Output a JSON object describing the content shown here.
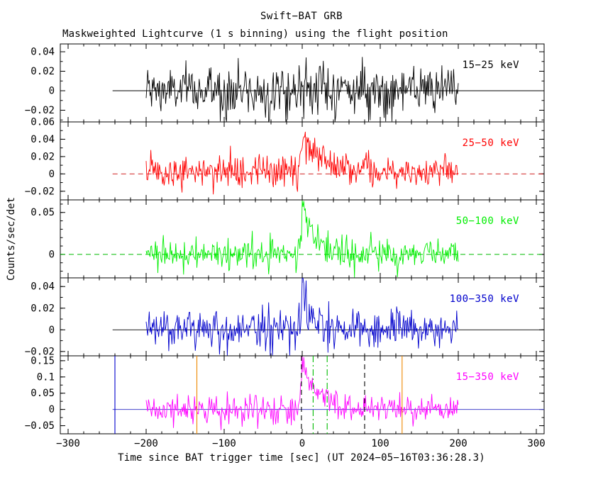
{
  "title": "Swift−BAT GRB",
  "subtitle": "Maskweighted Lightcurve (1 s binning) using the flight position",
  "xlabel": "Time since BAT trigger time [sec] (UT 2024−05−16T03:36:28.3)",
  "ylabel": "Counts/sec/det",
  "chart_data": {
    "type": "line",
    "x_range": [
      -310,
      310
    ],
    "x_ticks": [
      -300,
      -200,
      -100,
      0,
      100,
      200,
      300
    ],
    "x_minor_step": 20,
    "data_time_range": [
      -200,
      200
    ],
    "binning_sec": 1,
    "grid": false,
    "legend_position": "inside-right-per-panel",
    "panels": [
      {
        "label": "15−25 keV",
        "color": "#000000",
        "ylim": [
          -0.032,
          0.048
        ],
        "yticks": [
          0.04,
          0.02,
          0,
          -0.02
        ],
        "ytick_minor_step": 0.01,
        "noise_sigma": 0.0095,
        "noise_boost": {
          "center": -40,
          "width": 110,
          "factor": 0.55
        },
        "burst": {
          "t0": 0,
          "amplitude": 0.006,
          "rise": 2,
          "decay": 30
        },
        "baseline": {
          "style": "solid",
          "color": "#000000",
          "from": -243,
          "to": 310
        }
      },
      {
        "label": "25−50 keV",
        "color": "#ff0000",
        "ylim": [
          -0.03,
          0.06
        ],
        "yticks": [
          0.06,
          0.04,
          0.02,
          0,
          -0.02
        ],
        "ytick_minor_step": 0.01,
        "noise_sigma": 0.008,
        "offset": 0.003,
        "noise_boost": {
          "center": -60,
          "width": 120,
          "factor": 0.35
        },
        "burst": {
          "t0": 0,
          "amplitude": 0.042,
          "rise": 2,
          "decay": 25
        },
        "baseline": {
          "style": "dashed",
          "color": "#cc0000",
          "from": -243,
          "to": 310
        }
      },
      {
        "label": "50−100 keV",
        "color": "#00ee00",
        "ylim": [
          -0.028,
          0.065
        ],
        "yticks": [
          0.05,
          0
        ],
        "ytick_minor_step": 0.01,
        "noise_sigma": 0.0078,
        "noise_boost": {
          "center": 0,
          "width": 100,
          "factor": 0.25
        },
        "burst": {
          "t0": 0,
          "amplitude": 0.06,
          "rise": 1.5,
          "decay": 14
        },
        "burst2": {
          "t0": 25,
          "amplitude": 0.012,
          "rise": 3,
          "decay": 10
        },
        "baseline": {
          "style": "dashed",
          "color": "#00bb00",
          "from": -310,
          "to": 310
        }
      },
      {
        "label": "100−350 keV",
        "color": "#0000cc",
        "ylim": [
          -0.024,
          0.048
        ],
        "yticks": [
          0.04,
          0.02,
          0,
          -0.02
        ],
        "ytick_minor_step": 0.01,
        "noise_sigma": 0.0075,
        "noise_boost": {
          "center": 0,
          "width": 90,
          "factor": 0.3
        },
        "burst": {
          "t0": 0,
          "amplitude": 0.04,
          "rise": 1.5,
          "decay": 9
        },
        "baseline": {
          "style": "solid",
          "color": "#000000",
          "from": -243,
          "to": 310
        }
      },
      {
        "label": "15−350 keV",
        "color": "#ff00ff",
        "ylim": [
          -0.075,
          0.165
        ],
        "yticks": [
          0.15,
          0.1,
          0.05,
          0,
          -0.05
        ],
        "ytick_minor_step": 0.025,
        "noise_sigma": 0.017,
        "noise_boost": {
          "center": -40,
          "width": 110,
          "factor": 0.35
        },
        "burst": {
          "t0": 0,
          "amplitude": 0.145,
          "rise": 2,
          "decay": 18
        },
        "burst2": {
          "t0": 25,
          "amplitude": 0.02,
          "rise": 3,
          "decay": 12
        },
        "baseline": {
          "style": "solid",
          "color": "#4444cc",
          "from": -243,
          "to": 310
        }
      }
    ],
    "bottom_markers": [
      {
        "t": -240,
        "style": "solid",
        "color": "#0000cc"
      },
      {
        "t": -135,
        "style": "solid",
        "color": "#ee8800"
      },
      {
        "t": 128,
        "style": "solid",
        "color": "#ee8800"
      },
      {
        "t": -1,
        "style": "dashed",
        "color": "#000000"
      },
      {
        "t": 80,
        "style": "dashed",
        "color": "#000000"
      },
      {
        "t": 14,
        "style": "dashdot",
        "color": "#00bb00"
      },
      {
        "t": 32,
        "style": "dashdot",
        "color": "#00bb00"
      }
    ]
  }
}
